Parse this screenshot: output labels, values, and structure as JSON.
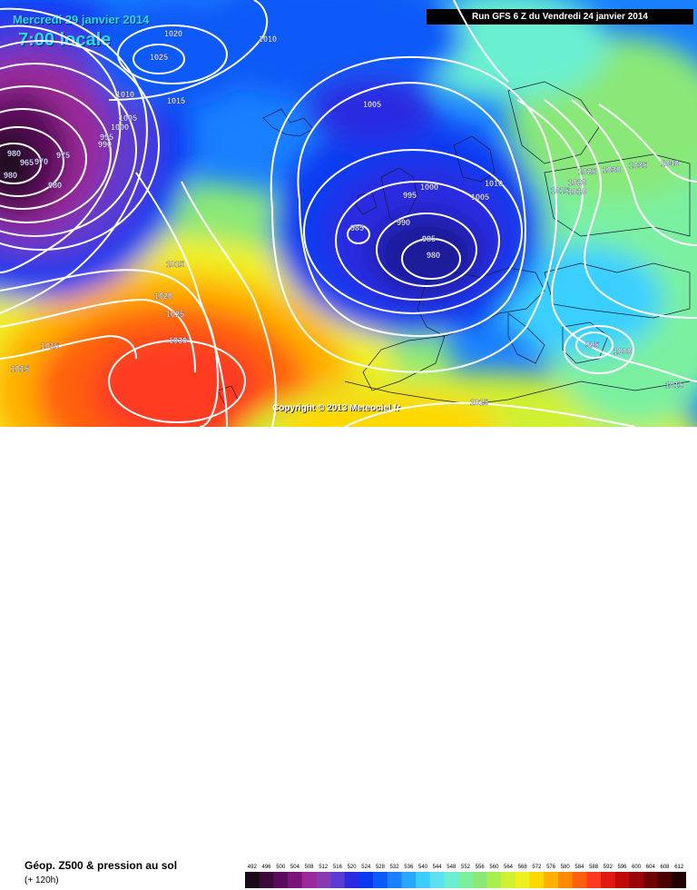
{
  "header": {
    "date_text": "Mercredi 29 janvier 2014",
    "time_text": "7:00 locale",
    "run_text": "Run GFS 6 Z du Vendredi 24 janvier 2014"
  },
  "copyright": "Copyright © 2013 Meteociel.fr",
  "footer": {
    "title": "Géop. Z500 & pression au sol",
    "subtitle": "(+ 120h)"
  },
  "scale": {
    "labels": [
      "492",
      "496",
      "500",
      "504",
      "508",
      "512",
      "516",
      "520",
      "524",
      "528",
      "532",
      "536",
      "540",
      "544",
      "548",
      "552",
      "556",
      "560",
      "564",
      "568",
      "572",
      "576",
      "580",
      "584",
      "588",
      "592",
      "596",
      "600",
      "604",
      "608",
      "612"
    ],
    "colors": [
      "#1a0a1a",
      "#3a0a3a",
      "#5a0a5a",
      "#7a127a",
      "#9a2a9a",
      "#8a3ab0",
      "#5a3ad0",
      "#2a2ae0",
      "#0a3af0",
      "#0a5af8",
      "#1a80ff",
      "#2aa8ff",
      "#3acfff",
      "#5ae0f0",
      "#6af0d0",
      "#7af0a0",
      "#8ae878",
      "#a8f050",
      "#d0f030",
      "#f0f020",
      "#ffd800",
      "#ffb000",
      "#ff8a00",
      "#ff6010",
      "#ff3a20",
      "#e01a10",
      "#c00a0a",
      "#9a0505",
      "#700303",
      "#480202",
      "#200000"
    ]
  },
  "isobars": [
    {
      "text": "1020"
    },
    {
      "text": "1025"
    },
    {
      "text": "1010"
    },
    {
      "text": "1010"
    },
    {
      "text": "1015"
    },
    {
      "text": "1005"
    },
    {
      "text": "1000"
    },
    {
      "text": "995"
    },
    {
      "text": "990"
    },
    {
      "text": "980"
    },
    {
      "text": "975"
    },
    {
      "text": "970"
    },
    {
      "text": "965"
    },
    {
      "text": "980"
    },
    {
      "text": "980"
    },
    {
      "text": "1005"
    },
    {
      "text": "1000"
    },
    {
      "text": "995"
    },
    {
      "text": "1005"
    },
    {
      "text": "1010"
    },
    {
      "text": "985"
    },
    {
      "text": "990"
    },
    {
      "text": "985"
    },
    {
      "text": "980"
    },
    {
      "text": "1015"
    },
    {
      "text": "1020"
    },
    {
      "text": "1025"
    },
    {
      "text": "1030"
    },
    {
      "text": "1015"
    },
    {
      "text": "1015"
    },
    {
      "text": "1025"
    },
    {
      "text": "1030"
    },
    {
      "text": "1035"
    },
    {
      "text": "1040"
    },
    {
      "text": "1020"
    },
    {
      "text": "1015"
    },
    {
      "text": "1010"
    },
    {
      "text": "995"
    },
    {
      "text": "1000"
    },
    {
      "text": "1015"
    },
    {
      "text": "1015"
    }
  ]
}
